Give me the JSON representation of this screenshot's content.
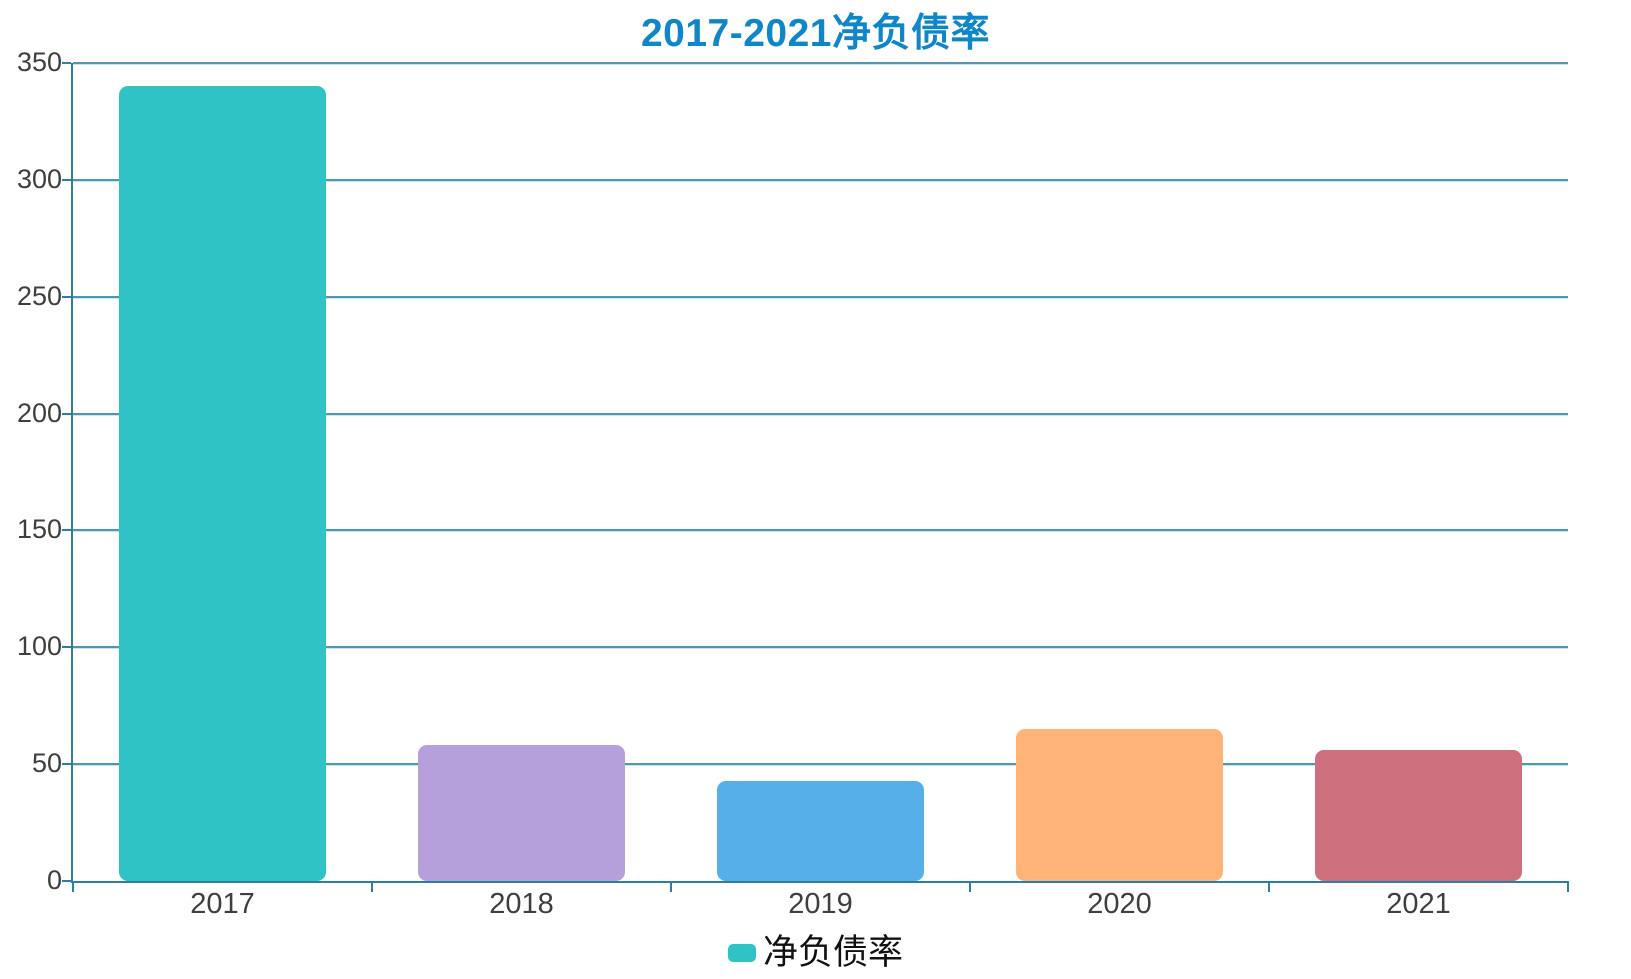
{
  "chart_data": {
    "type": "bar",
    "title": "2017-2021净负债率",
    "categories": [
      "2017",
      "2018",
      "2019",
      "2020",
      "2021"
    ],
    "series": [
      {
        "name": "净负债率",
        "values": [
          340,
          58,
          43,
          65,
          56
        ]
      }
    ],
    "bar_colors": [
      "#2fc3c5",
      "#b6a0db",
      "#56afe9",
      "#ffb377",
      "#cd6f7d"
    ],
    "xlabel": "",
    "ylabel": "",
    "ylim": [
      0,
      350
    ],
    "y_tick_step": 50,
    "y_tick_labels": [
      "0",
      "50",
      "100",
      "150",
      "200",
      "250",
      "300",
      "350"
    ],
    "grid": true,
    "legend_position": "bottom",
    "legend": [
      {
        "label": "净负债率",
        "marker_color": "#2fc3c5"
      }
    ]
  },
  "colors": {
    "title": "#0e86c9",
    "axis": "#2e7f9f",
    "gridline": "#4f96ae",
    "tick_label": "#3f3f3f",
    "legend_text": "#111111",
    "background": "#ffffff"
  }
}
